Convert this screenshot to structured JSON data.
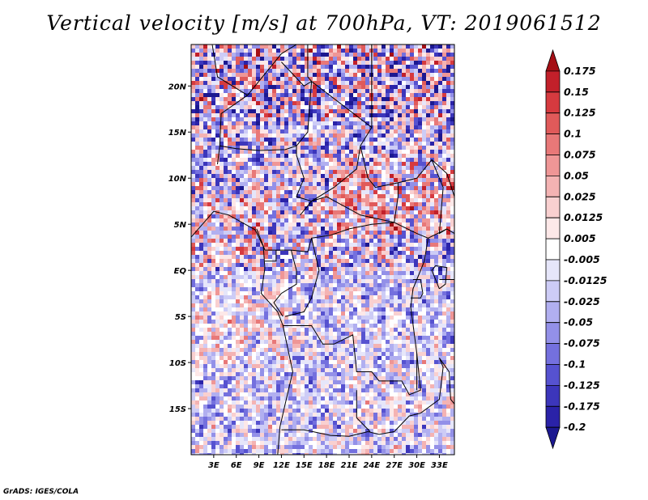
{
  "title": "Vertical velocity [m/s] at 700hPa, VT: 2019061512",
  "footer": "GrADS: IGES/COLA",
  "map": {
    "lon_range": [
      0,
      35
    ],
    "lat_range": [
      -20,
      24.5
    ],
    "x_ticks": [
      {
        "value": 3,
        "label": "3E"
      },
      {
        "value": 6,
        "label": "6E"
      },
      {
        "value": 9,
        "label": "9E"
      },
      {
        "value": 12,
        "label": "12E"
      },
      {
        "value": 15,
        "label": "15E"
      },
      {
        "value": 18,
        "label": "18E"
      },
      {
        "value": 21,
        "label": "21E"
      },
      {
        "value": 24,
        "label": "24E"
      },
      {
        "value": 27,
        "label": "27E"
      },
      {
        "value": 30,
        "label": "30E"
      },
      {
        "value": 33,
        "label": "33E"
      }
    ],
    "y_ticks": [
      {
        "value": 20,
        "label": "20N"
      },
      {
        "value": 15,
        "label": "15N"
      },
      {
        "value": 10,
        "label": "10N"
      },
      {
        "value": 5,
        "label": "5N"
      },
      {
        "value": 0,
        "label": "EQ"
      },
      {
        "value": -5,
        "label": "5S"
      },
      {
        "value": -10,
        "label": "10S"
      },
      {
        "value": -15,
        "label": "15S"
      }
    ]
  },
  "colorbar": {
    "labels": [
      "0.175",
      "0.15",
      "0.125",
      "0.1",
      "0.075",
      "0.05",
      "0.025",
      "0.0125",
      "0.005",
      "-0.005",
      "-0.0125",
      "-0.025",
      "-0.05",
      "-0.075",
      "-0.1",
      "-0.125",
      "-0.175",
      "-0.2"
    ],
    "colors": [
      "#a50f15",
      "#c2202a",
      "#d63a3f",
      "#e05a5a",
      "#e87878",
      "#ef9696",
      "#f4b3b3",
      "#f9d0d0",
      "#fde8e8",
      "#ffffff",
      "#e6e6fa",
      "#cdccf6",
      "#b1aff0",
      "#9390e8",
      "#7470de",
      "#5652d0",
      "#3c36bb",
      "#2a22a8",
      "#1c1890"
    ]
  }
}
